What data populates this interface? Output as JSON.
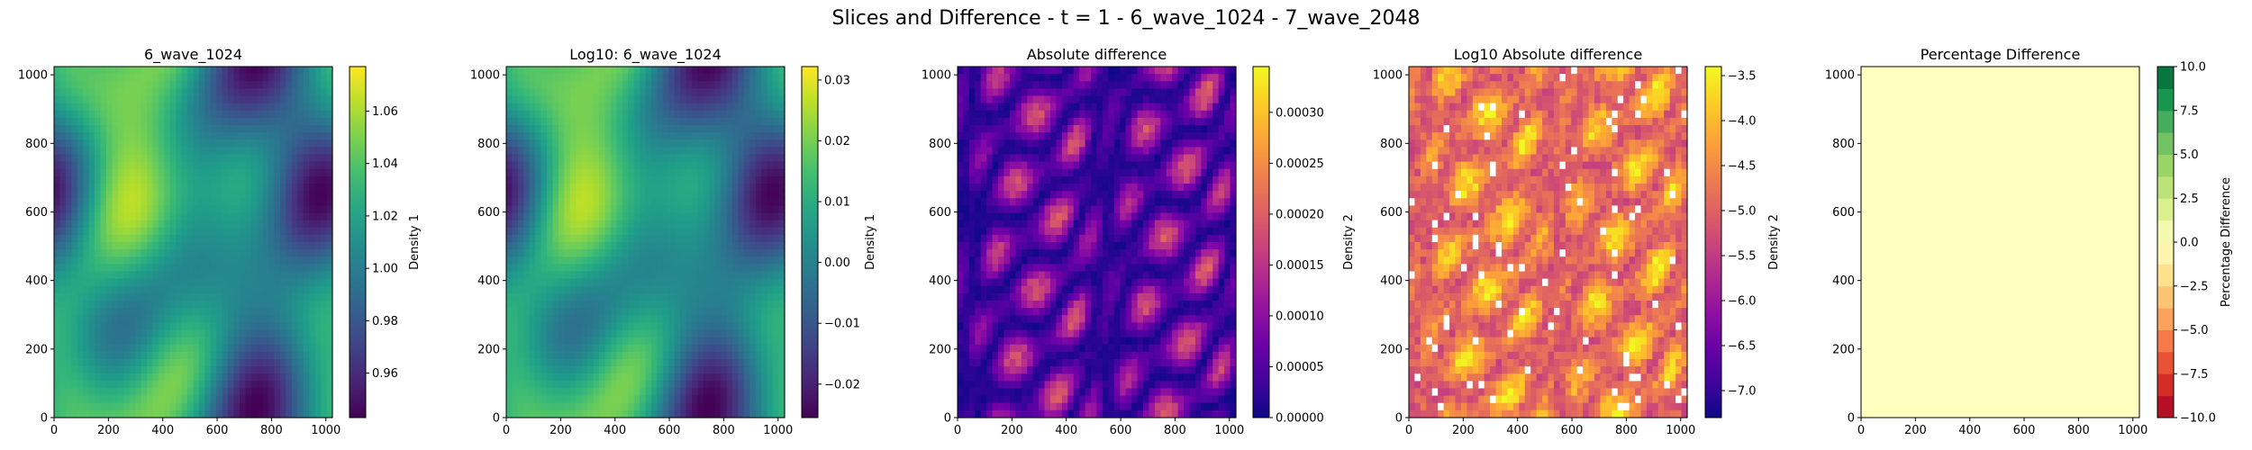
{
  "figure_title": "Slices and Difference - t = 1 - 6_wave_1024 - 7_wave_2048",
  "chart_data": [
    {
      "type": "heatmap",
      "title": "6_wave_1024",
      "colormap": "viridis",
      "xlim": [
        0,
        1024
      ],
      "ylim": [
        0,
        1024
      ],
      "xticks": [
        "0",
        "200",
        "400",
        "600",
        "800",
        "1000"
      ],
      "yticks": [
        "0",
        "200",
        "400",
        "600",
        "800",
        "1000"
      ],
      "colorbar": {
        "label": "Density 1",
        "range": [
          0.943,
          1.077
        ],
        "ticks": [
          {
            "v": 0.96,
            "t": "0.96"
          },
          {
            "v": 0.98,
            "t": "0.98"
          },
          {
            "v": 1.0,
            "t": "1.00"
          },
          {
            "v": 1.02,
            "t": "1.02"
          },
          {
            "v": 1.04,
            "t": "1.04"
          },
          {
            "v": 1.06,
            "t": "1.06"
          }
        ]
      }
    },
    {
      "type": "heatmap",
      "title": "Log10: 6_wave_1024",
      "colormap": "viridis",
      "xlim": [
        0,
        1024
      ],
      "ylim": [
        0,
        1024
      ],
      "xticks": [
        "0",
        "200",
        "400",
        "600",
        "800",
        "1000"
      ],
      "yticks": [
        "0",
        "200",
        "400",
        "600",
        "800",
        "1000"
      ],
      "colorbar": {
        "label": "Density 1",
        "range": [
          -0.0255,
          0.0322
        ],
        "ticks": [
          {
            "v": -0.02,
            "t": "−0.02"
          },
          {
            "v": -0.01,
            "t": "−0.01"
          },
          {
            "v": 0.0,
            "t": "0.00"
          },
          {
            "v": 0.01,
            "t": "0.01"
          },
          {
            "v": 0.02,
            "t": "0.02"
          },
          {
            "v": 0.03,
            "t": "0.03"
          }
        ]
      }
    },
    {
      "type": "heatmap",
      "title": "Absolute difference",
      "colormap": "plasma",
      "xlim": [
        0,
        1024
      ],
      "ylim": [
        0,
        1024
      ],
      "xticks": [
        "0",
        "200",
        "400",
        "600",
        "800",
        "1000"
      ],
      "yticks": [
        "0",
        "200",
        "400",
        "600",
        "800",
        "1000"
      ],
      "colorbar": {
        "label": "Density 2",
        "range": [
          0,
          0.000345
        ],
        "ticks": [
          {
            "v": 0,
            "t": "0.00000"
          },
          {
            "v": 5e-05,
            "t": "0.00005"
          },
          {
            "v": 0.0001,
            "t": "0.00010"
          },
          {
            "v": 0.00015,
            "t": "0.00015"
          },
          {
            "v": 0.0002,
            "t": "0.00020"
          },
          {
            "v": 0.00025,
            "t": "0.00025"
          },
          {
            "v": 0.0003,
            "t": "0.00030"
          }
        ]
      }
    },
    {
      "type": "heatmap",
      "title": "Log10 Absolute difference",
      "colormap": "plasma",
      "xlim": [
        0,
        1024
      ],
      "ylim": [
        0,
        1024
      ],
      "xticks": [
        "0",
        "200",
        "400",
        "600",
        "800",
        "1000"
      ],
      "yticks": [
        "0",
        "200",
        "400",
        "600",
        "800",
        "1000"
      ],
      "colorbar": {
        "label": "Density 2",
        "range": [
          -7.3,
          -3.4
        ],
        "ticks": [
          {
            "v": -7.0,
            "t": "−7.0"
          },
          {
            "v": -6.5,
            "t": "−6.5"
          },
          {
            "v": -6.0,
            "t": "−6.0"
          },
          {
            "v": -5.5,
            "t": "−5.5"
          },
          {
            "v": -5.0,
            "t": "−5.0"
          },
          {
            "v": -4.5,
            "t": "−4.5"
          },
          {
            "v": -4.0,
            "t": "−4.0"
          },
          {
            "v": -3.5,
            "t": "−3.5"
          }
        ]
      }
    },
    {
      "type": "heatmap",
      "title": "Percentage Difference",
      "colormap": "RdYlGn",
      "fill_color": "#ffffbf",
      "xlim": [
        0,
        1024
      ],
      "ylim": [
        0,
        1024
      ],
      "xticks": [
        "0",
        "200",
        "400",
        "600",
        "800",
        "1000"
      ],
      "yticks": [
        "0",
        "200",
        "400",
        "600",
        "800",
        "1000"
      ],
      "colorbar": {
        "label": "Percentage Difference",
        "range": [
          -10,
          10
        ],
        "levels": 16,
        "ticks": [
          {
            "v": -10,
            "t": "−10.0"
          },
          {
            "v": -7.5,
            "t": "−7.5"
          },
          {
            "v": -5,
            "t": "−5.0"
          },
          {
            "v": -2.5,
            "t": "−2.5"
          },
          {
            "v": 0,
            "t": "0.0"
          },
          {
            "v": 2.5,
            "t": "2.5"
          },
          {
            "v": 5,
            "t": "5.0"
          },
          {
            "v": 7.5,
            "t": "7.5"
          },
          {
            "v": 10,
            "t": "10.0"
          }
        ]
      }
    }
  ]
}
